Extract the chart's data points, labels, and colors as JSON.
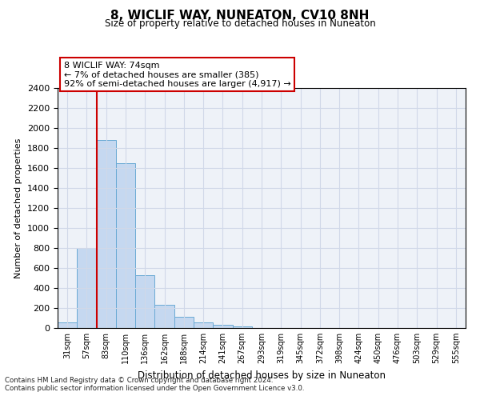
{
  "title": "8, WICLIF WAY, NUNEATON, CV10 8NH",
  "subtitle": "Size of property relative to detached houses in Nuneaton",
  "xlabel": "Distribution of detached houses by size in Nuneaton",
  "ylabel": "Number of detached properties",
  "bar_labels": [
    "31sqm",
    "57sqm",
    "83sqm",
    "110sqm",
    "136sqm",
    "162sqm",
    "188sqm",
    "214sqm",
    "241sqm",
    "267sqm",
    "293sqm",
    "319sqm",
    "345sqm",
    "372sqm",
    "398sqm",
    "424sqm",
    "450sqm",
    "476sqm",
    "503sqm",
    "529sqm",
    "555sqm"
  ],
  "bar_heights": [
    55,
    800,
    1880,
    1650,
    530,
    235,
    110,
    55,
    30,
    18,
    0,
    0,
    0,
    0,
    0,
    0,
    0,
    0,
    0,
    0,
    0
  ],
  "bar_color": "#c5d8f0",
  "bar_edge_color": "#6aaad4",
  "vline_x_index": 2,
  "vline_color": "#cc0000",
  "ylim": [
    0,
    2400
  ],
  "yticks": [
    0,
    200,
    400,
    600,
    800,
    1000,
    1200,
    1400,
    1600,
    1800,
    2000,
    2200,
    2400
  ],
  "annotation_text": "8 WICLIF WAY: 74sqm\n← 7% of detached houses are smaller (385)\n92% of semi-detached houses are larger (4,917) →",
  "annotation_box_color": "#ffffff",
  "annotation_box_edge": "#cc0000",
  "footer_line1": "Contains HM Land Registry data © Crown copyright and database right 2024.",
  "footer_line2": "Contains public sector information licensed under the Open Government Licence v3.0.",
  "grid_color": "#d0d8e8",
  "background_color": "#eef2f8"
}
